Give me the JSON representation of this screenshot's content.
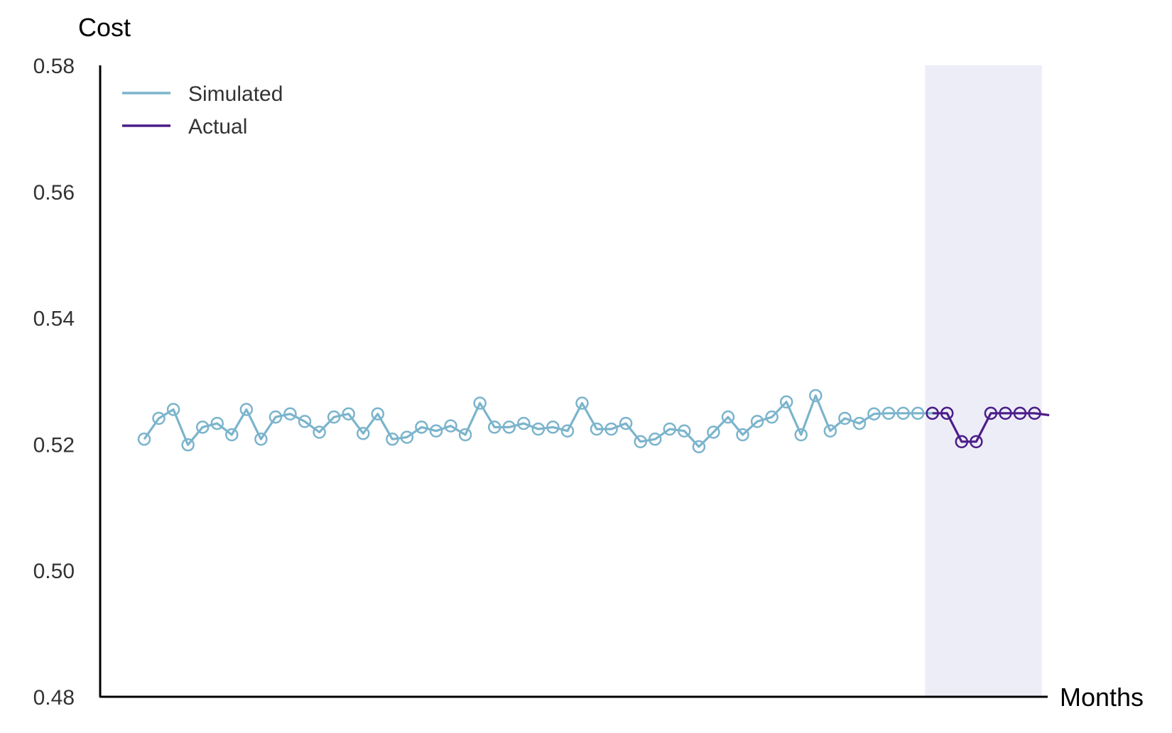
{
  "chart_data": {
    "type": "line",
    "ylabel": "Cost",
    "xlabel": "Months",
    "ylim": [
      0.48,
      0.58
    ],
    "yticks": [
      "0.58",
      "0.56",
      "0.54",
      "0.52",
      "0.50",
      "0.48"
    ],
    "grid": false,
    "legend_position": "top-left",
    "highlight_region": {
      "x_start": 54.5,
      "x_end": 62.5,
      "color": "#ecedf6"
    },
    "series": [
      {
        "name": "Simulated",
        "color": "#7bb4cc",
        "x": [
          1,
          2,
          3,
          4,
          5,
          6,
          7,
          8,
          9,
          10,
          11,
          12,
          13,
          14,
          15,
          16,
          17,
          18,
          19,
          20,
          21,
          22,
          23,
          24,
          25,
          26,
          27,
          28,
          29,
          30,
          31,
          32,
          33,
          34,
          35,
          36,
          37,
          38,
          39,
          40,
          41,
          42,
          43,
          44,
          45,
          46,
          47,
          48,
          49,
          50,
          51,
          52,
          53,
          54,
          55
        ],
        "y": [
          0.5208,
          0.5241,
          0.5255,
          0.5199,
          0.5227,
          0.5233,
          0.5215,
          0.5255,
          0.5208,
          0.5243,
          0.5248,
          0.5236,
          0.5219,
          0.5243,
          0.5248,
          0.5217,
          0.5248,
          0.5208,
          0.5211,
          0.5227,
          0.5221,
          0.5229,
          0.5215,
          0.5265,
          0.5227,
          0.5227,
          0.5233,
          0.5224,
          0.5227,
          0.5221,
          0.5265,
          0.5224,
          0.5224,
          0.5233,
          0.5204,
          0.5208,
          0.5224,
          0.5221,
          0.5196,
          0.5219,
          0.5243,
          0.5215,
          0.5236,
          0.5243,
          0.5267,
          0.5215,
          0.5277,
          0.5221,
          0.5241,
          0.5233,
          0.5248,
          0.5249,
          0.5249,
          0.5249,
          0.5249
        ]
      },
      {
        "name": "Actual",
        "color": "#4b1d8a",
        "x": [
          55,
          56,
          57,
          58,
          59,
          60,
          61,
          62,
          63
        ],
        "y": [
          0.5249,
          0.5249,
          0.5204,
          0.5204,
          0.5249,
          0.5249,
          0.5249,
          0.5249,
          0.5246
        ],
        "markers": [
          true,
          true,
          true,
          true,
          true,
          true,
          true,
          true,
          false
        ]
      }
    ]
  }
}
